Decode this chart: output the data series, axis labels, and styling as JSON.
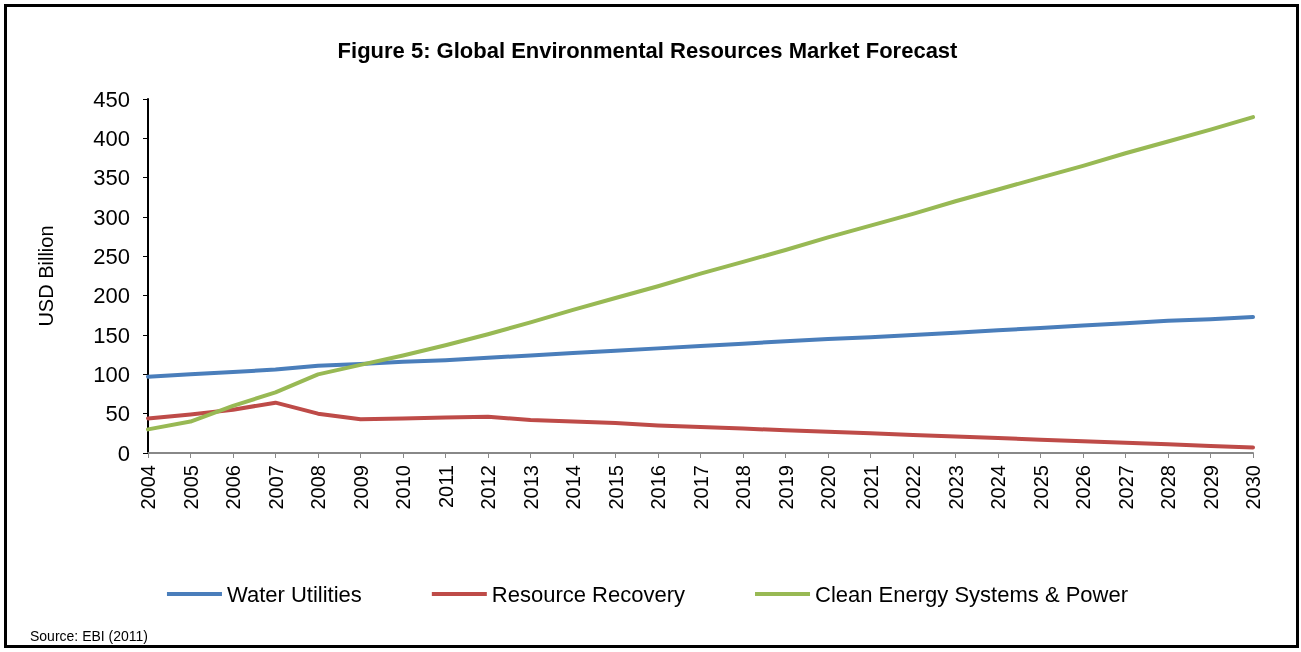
{
  "chart_data": {
    "type": "line",
    "title": "Figure 5: Global Environmental Resources Market Forecast",
    "ylabel": "USD Billion",
    "categories": [
      "2004",
      "2005",
      "2006",
      "2007",
      "2008",
      "2009",
      "2010",
      "2011",
      "2012",
      "2013",
      "2014",
      "2015",
      "2016",
      "2017",
      "2018",
      "2019",
      "2020",
      "2021",
      "2022",
      "2023",
      "2024",
      "2025",
      "2026",
      "2027",
      "2028",
      "2029",
      "2030"
    ],
    "series": [
      {
        "name": "Water Utilities",
        "color": "#4a7ebb",
        "values": [
          97,
          100,
          103,
          106,
          111,
          113,
          116,
          118,
          121,
          124,
          127,
          130,
          133,
          136,
          139,
          142,
          145,
          147,
          150,
          153,
          156,
          159,
          162,
          165,
          168,
          170,
          173
        ]
      },
      {
        "name": "Resource Recovery",
        "color": "#be4b48",
        "values": [
          44,
          49,
          55,
          64,
          50,
          43,
          44,
          45,
          46,
          42,
          40,
          38,
          35,
          33,
          31,
          29,
          27,
          25,
          23,
          21,
          19,
          17,
          15,
          13,
          11,
          9,
          7
        ]
      },
      {
        "name": "Clean Energy Systems & Power",
        "color": "#98b954",
        "values": [
          30,
          40,
          60,
          77,
          100,
          112,
          124,
          137,
          151,
          166,
          182,
          197,
          212,
          228,
          243,
          258,
          274,
          289,
          304,
          320,
          335,
          350,
          365,
          381,
          396,
          411,
          427
        ]
      }
    ],
    "ylim": [
      0,
      450
    ],
    "yticks": [
      0,
      50,
      100,
      150,
      200,
      250,
      300,
      350,
      400,
      450
    ],
    "grid": false,
    "legend": "bottom",
    "marker": "none",
    "line_style": "solid",
    "annotations": [
      "Source: EBI (2011)"
    ]
  }
}
